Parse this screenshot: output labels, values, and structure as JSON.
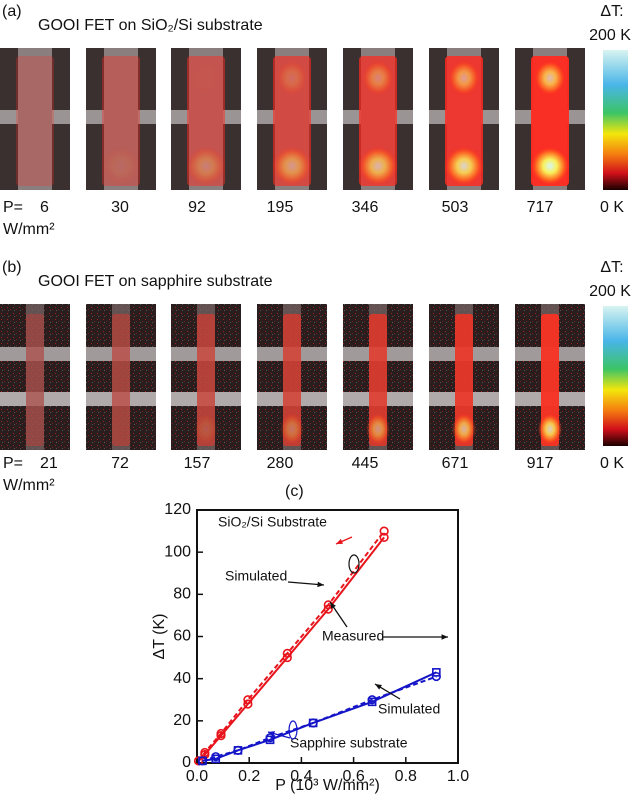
{
  "panel_a": {
    "label": "(a)",
    "title": "GOOI FET on SiO₂/Si substrate",
    "p_label": "P=",
    "unit": "W/mm²",
    "powers": [
      6,
      30,
      92,
      195,
      346,
      503,
      717
    ],
    "colorbar": {
      "label": "ΔT:",
      "max": "200 K",
      "min": "0 K"
    }
  },
  "panel_b": {
    "label": "(b)",
    "title": "GOOI FET on sapphire substrate",
    "p_label": "P=",
    "unit": "W/mm²",
    "powers": [
      21,
      72,
      157,
      280,
      445,
      671,
      917
    ],
    "colorbar": {
      "label": "ΔT:",
      "max": "200 K",
      "min": "0 K"
    }
  },
  "chart_data": {
    "type": "line",
    "panel_label": "(c)",
    "x_label": "P (10³ W/mm²)",
    "y_label": "ΔT (K)",
    "xlim": [
      0,
      1
    ],
    "ylim": [
      0,
      120
    ],
    "xticks": [
      {
        "value": 0,
        "label": "0.0"
      },
      {
        "value": 0.2,
        "label": "0.2"
      },
      {
        "value": 0.4,
        "label": "0.4"
      },
      {
        "value": 0.6,
        "label": "0.6"
      },
      {
        "value": 0.8,
        "label": "0.8"
      },
      {
        "value": 1,
        "label": "1.0"
      }
    ],
    "yticks": [
      0,
      20,
      40,
      60,
      80,
      100,
      120
    ],
    "series": [
      {
        "color": "#e8141b",
        "marker": "circle",
        "dashed": true,
        "x": [
          0.006,
          0.03,
          0.092,
          0.195,
          0.346,
          0.503,
          0.717
        ],
        "values": [
          1,
          5,
          14,
          30,
          52,
          75,
          110
        ]
      },
      {
        "color": "#e8141b",
        "marker": "circle",
        "dashed": false,
        "x": [
          0.006,
          0.03,
          0.092,
          0.195,
          0.346,
          0.503,
          0.717
        ],
        "values": [
          1,
          4,
          13,
          28,
          50,
          73,
          107
        ]
      },
      {
        "color": "#1515c8",
        "marker": "circle",
        "dashed": true,
        "x": [
          0.021,
          0.072,
          0.157,
          0.28,
          0.445,
          0.671,
          0.917
        ],
        "values": [
          1,
          3,
          6,
          12,
          19,
          30,
          41
        ]
      },
      {
        "color": "#1515c8",
        "marker": "square",
        "dashed": false,
        "x": [
          0.021,
          0.072,
          0.157,
          0.28,
          0.445,
          0.671,
          0.917
        ],
        "values": [
          1,
          2,
          6,
          11,
          19,
          29,
          43
        ]
      }
    ],
    "annotations": [
      {
        "text": "SiO₂/Si Substrate",
        "color": "#e8141b"
      },
      {
        "text": "Simulated",
        "color": "#111111"
      },
      {
        "text": "Measured",
        "color": "#111111"
      },
      {
        "text": "Simulated",
        "color": "#111111"
      },
      {
        "text": "Sapphire substrate",
        "color": "#1515c8"
      }
    ]
  }
}
